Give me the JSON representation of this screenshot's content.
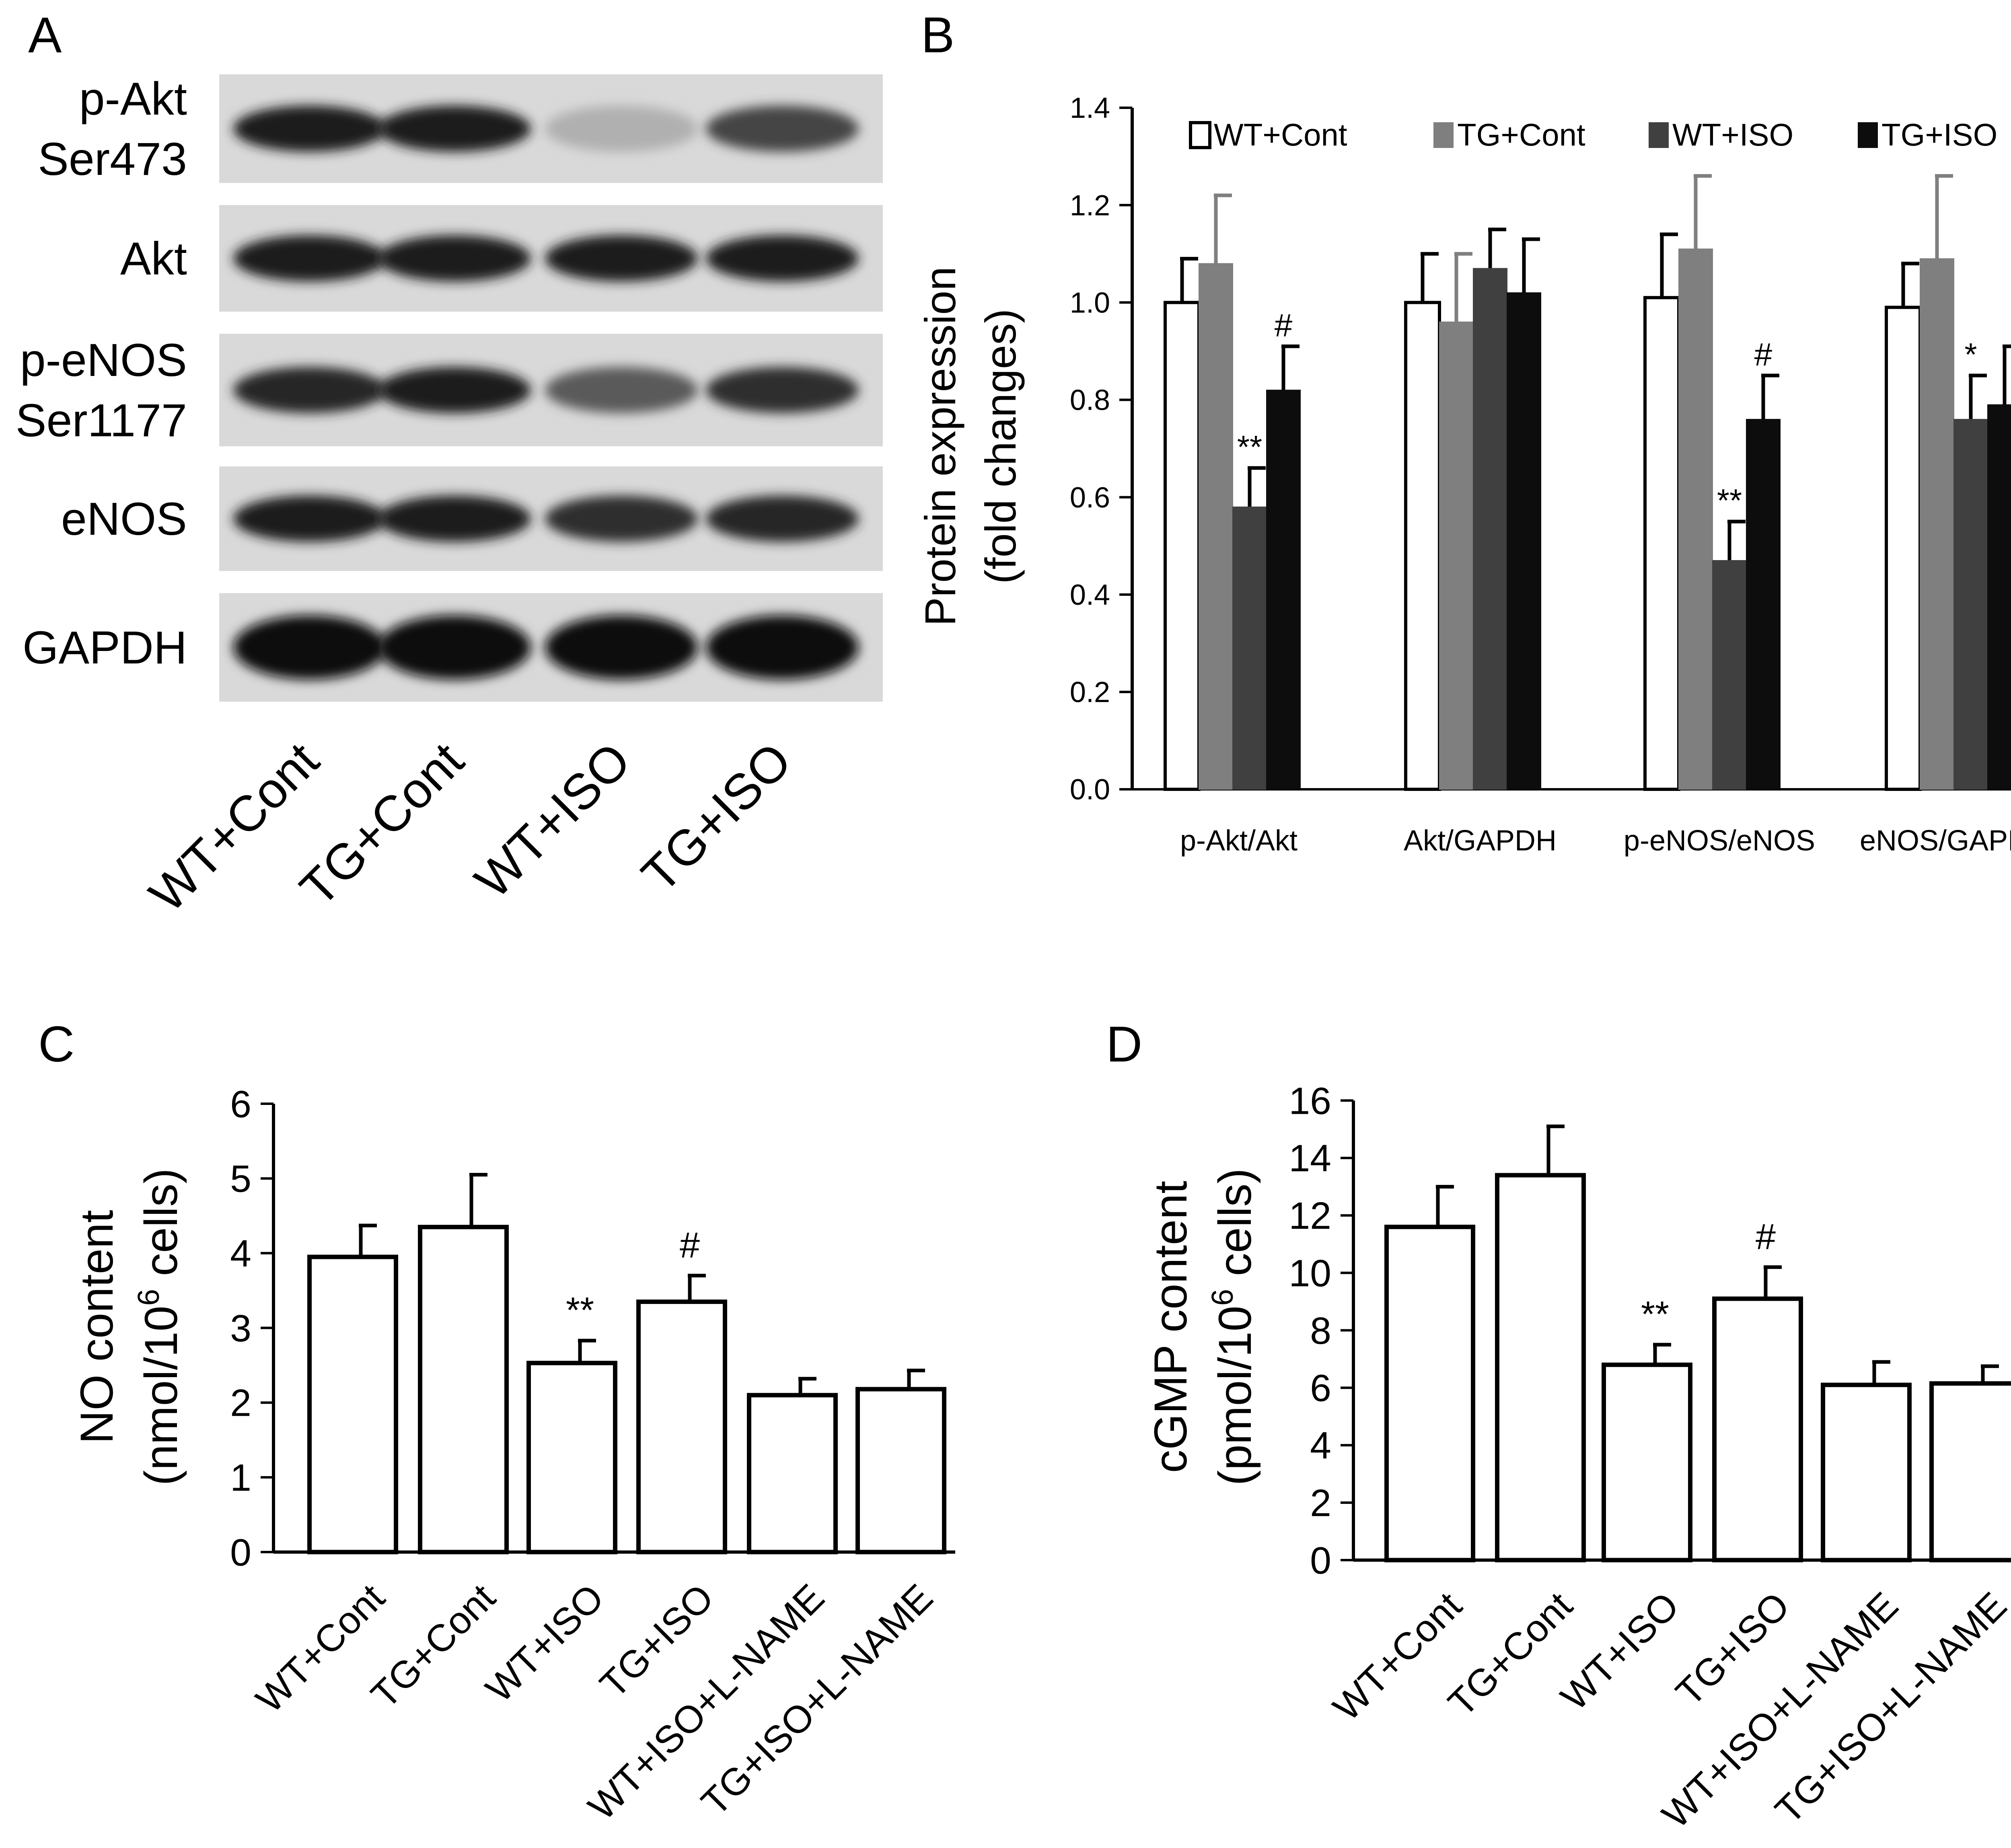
{
  "panel_labels": {
    "a": "A",
    "b": "B",
    "c": "C",
    "d": "D"
  },
  "blot": {
    "rows": [
      {
        "label_lines": [
          "p-Akt",
          "Ser473"
        ],
        "intensities": [
          0.95,
          0.95,
          0.25,
          0.75
        ]
      },
      {
        "label_lines": [
          "Akt"
        ],
        "intensities": [
          0.95,
          0.95,
          0.95,
          0.95
        ]
      },
      {
        "label_lines": [
          "p-eNOS",
          "Ser1177"
        ],
        "intensities": [
          0.9,
          0.95,
          0.65,
          0.85
        ]
      },
      {
        "label_lines": [
          "eNOS"
        ],
        "intensities": [
          0.95,
          0.95,
          0.85,
          0.9
        ]
      },
      {
        "label_lines": [
          "GAPDH"
        ],
        "intensities": [
          1.0,
          1.0,
          1.0,
          1.0
        ]
      }
    ],
    "lanes": [
      "WT+Cont",
      "TG+Cont",
      "WT+ISO",
      "TG+ISO"
    ]
  },
  "chart_data": [
    {
      "panel": "B",
      "type": "bar",
      "ylabel_lines": [
        "Protein expression",
        "(fold changes)"
      ],
      "ylim": [
        0,
        1.4
      ],
      "yticks": [
        "0.0",
        "0.2",
        "0.4",
        "0.6",
        "0.8",
        "1.0",
        "1.2",
        "1.4"
      ],
      "categories": [
        "p-Akt/Akt",
        "Akt/GAPDH",
        "p-eNOS/eNOS",
        "eNOS/GAPDH"
      ],
      "legend_position": "top",
      "series": [
        {
          "name": "WT+Cont",
          "color": "#ffffff",
          "values": [
            1.0,
            1.0,
            1.01,
            0.99
          ],
          "errors": [
            0.09,
            0.1,
            0.13,
            0.09
          ],
          "marks": [
            "",
            "",
            "",
            ""
          ]
        },
        {
          "name": "TG+Cont",
          "color": "#7f7f7f",
          "values": [
            1.08,
            0.96,
            1.11,
            1.09
          ],
          "errors": [
            0.14,
            0.14,
            0.15,
            0.17
          ],
          "marks": [
            "",
            "",
            "",
            ""
          ]
        },
        {
          "name": "WT+ISO",
          "color": "#404040",
          "values": [
            0.58,
            1.07,
            0.47,
            0.76
          ],
          "errors": [
            0.08,
            0.08,
            0.08,
            0.09
          ],
          "marks": [
            "**",
            "",
            "**",
            "*"
          ]
        },
        {
          "name": "TG+ISO",
          "color": "#0d0d0d",
          "values": [
            0.82,
            1.02,
            0.76,
            0.79
          ],
          "errors": [
            0.09,
            0.11,
            0.09,
            0.12
          ],
          "marks": [
            "#",
            "",
            "#",
            ""
          ]
        }
      ]
    },
    {
      "panel": "C",
      "type": "bar",
      "ylabel_lines": [
        "NO content",
        "(nmol/10",
        "6",
        " cells)"
      ],
      "ylim": [
        0,
        6
      ],
      "yticks": [
        "0",
        "1",
        "2",
        "3",
        "4",
        "5",
        "6"
      ],
      "categories": [
        "WT+Cont",
        "TG+Cont",
        "WT+ISO",
        "TG+ISO",
        "WT+ISO+L-NAME",
        "TG+ISO+L-NAME"
      ],
      "values": [
        3.95,
        4.35,
        2.53,
        3.35,
        2.1,
        2.18
      ],
      "errors": [
        0.42,
        0.7,
        0.3,
        0.35,
        0.22,
        0.25
      ],
      "marks": [
        "",
        "",
        "**",
        "#",
        "",
        ""
      ]
    },
    {
      "panel": "D",
      "type": "bar",
      "ylabel_lines": [
        "cGMP content",
        "(pmol/10",
        "6",
        " cells)"
      ],
      "ylim": [
        0,
        16
      ],
      "yticks": [
        "0",
        "2",
        "4",
        "6",
        "8",
        "10",
        "12",
        "14",
        "16"
      ],
      "categories": [
        "WT+Cont",
        "TG+Cont",
        "WT+ISO",
        "TG+ISO",
        "WT+ISO+L-NAME",
        "TG+ISO+L-NAME"
      ],
      "values": [
        11.6,
        13.4,
        6.8,
        9.1,
        6.1,
        6.15
      ],
      "errors": [
        1.4,
        1.7,
        0.7,
        1.1,
        0.8,
        0.6
      ],
      "marks": [
        "",
        "",
        "**",
        "#",
        "",
        ""
      ]
    }
  ]
}
